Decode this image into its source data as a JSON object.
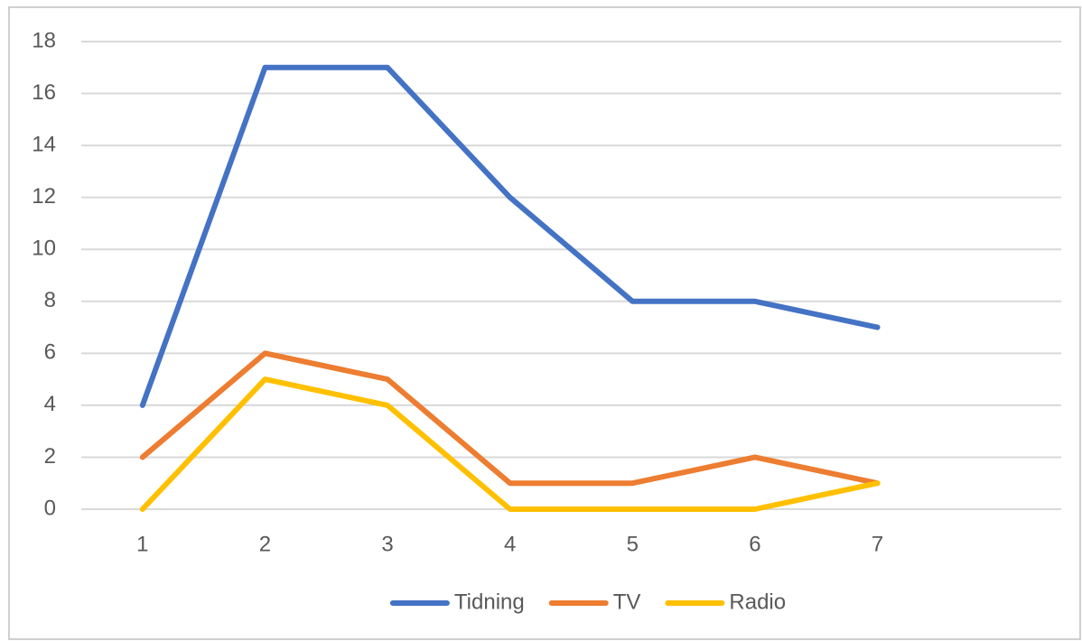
{
  "chart_data": {
    "type": "line",
    "categories": [
      1,
      2,
      3,
      4,
      5,
      6,
      7,
      null
    ],
    "series": [
      {
        "name": "Tidning",
        "color": "#4472c4",
        "values": [
          4,
          17,
          17,
          12,
          8,
          8,
          7,
          null
        ]
      },
      {
        "name": "TV",
        "color": "#ed7d31",
        "values": [
          2,
          6,
          5,
          1,
          1,
          2,
          1,
          null
        ]
      },
      {
        "name": "Radio",
        "color": "#ffc000",
        "values": [
          0,
          5,
          4,
          0,
          0,
          0,
          1,
          null
        ]
      }
    ],
    "ylim": [
      0,
      18
    ],
    "yticks": [
      0,
      2,
      4,
      6,
      8,
      10,
      12,
      14,
      16,
      18
    ],
    "grid": true,
    "legend": "bottom"
  }
}
